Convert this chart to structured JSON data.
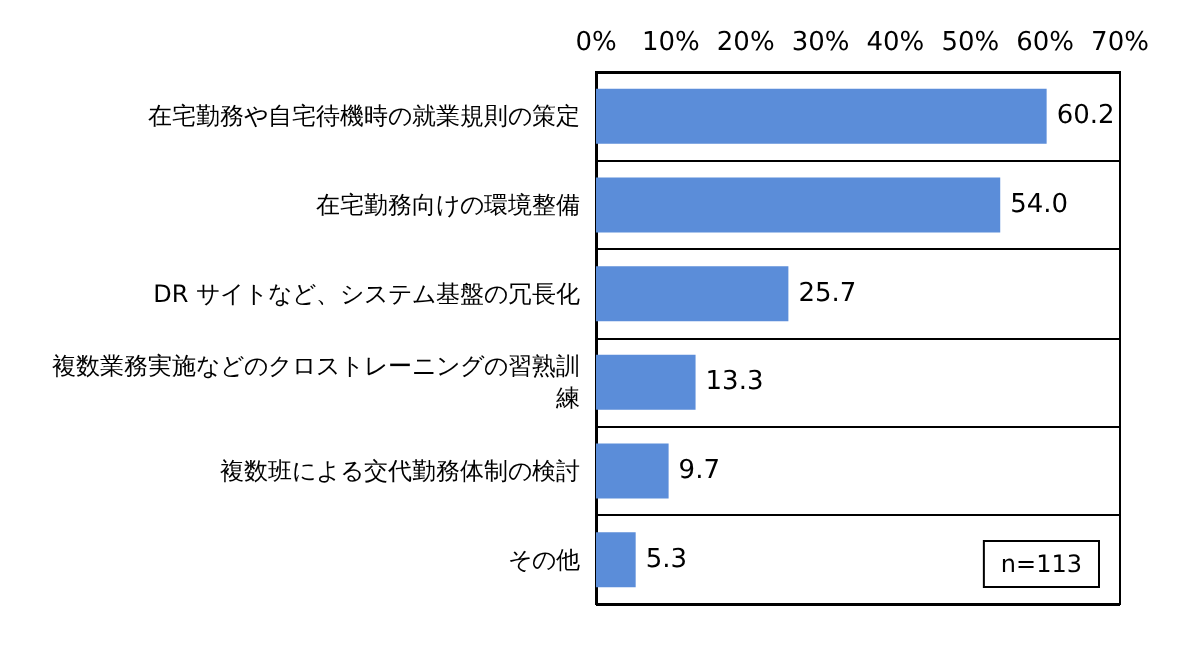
{
  "chart_data": {
    "type": "bar",
    "orientation": "horizontal",
    "categories": [
      "在宅勤務や自宅待機時の就業規則の策定",
      "在宅勤務向けの環境整備",
      "DR サイトなど、システム基盤の冗長化",
      "複数業務実施などのクロストレーニングの習熟訓練",
      "複数班による交代勤務体制の検討",
      "その他"
    ],
    "values": [
      60.2,
      54.0,
      25.7,
      13.3,
      9.7,
      5.3
    ],
    "value_labels": [
      "60.2",
      "54.0",
      "25.7",
      "13.3",
      "9.7",
      "5.3"
    ],
    "color": "#5b8dd9",
    "xlim": [
      0,
      70
    ],
    "xticks": [
      {
        "value": 0,
        "label": "0%"
      },
      {
        "value": 10,
        "label": "10%"
      },
      {
        "value": 20,
        "label": "20%"
      },
      {
        "value": 30,
        "label": "30%"
      },
      {
        "value": 40,
        "label": "40%"
      },
      {
        "value": 50,
        "label": "50%"
      },
      {
        "value": 60,
        "label": "60%"
      },
      {
        "value": 70,
        "label": "70%"
      }
    ],
    "grid": "y",
    "annotations": [
      "n=113"
    ]
  }
}
